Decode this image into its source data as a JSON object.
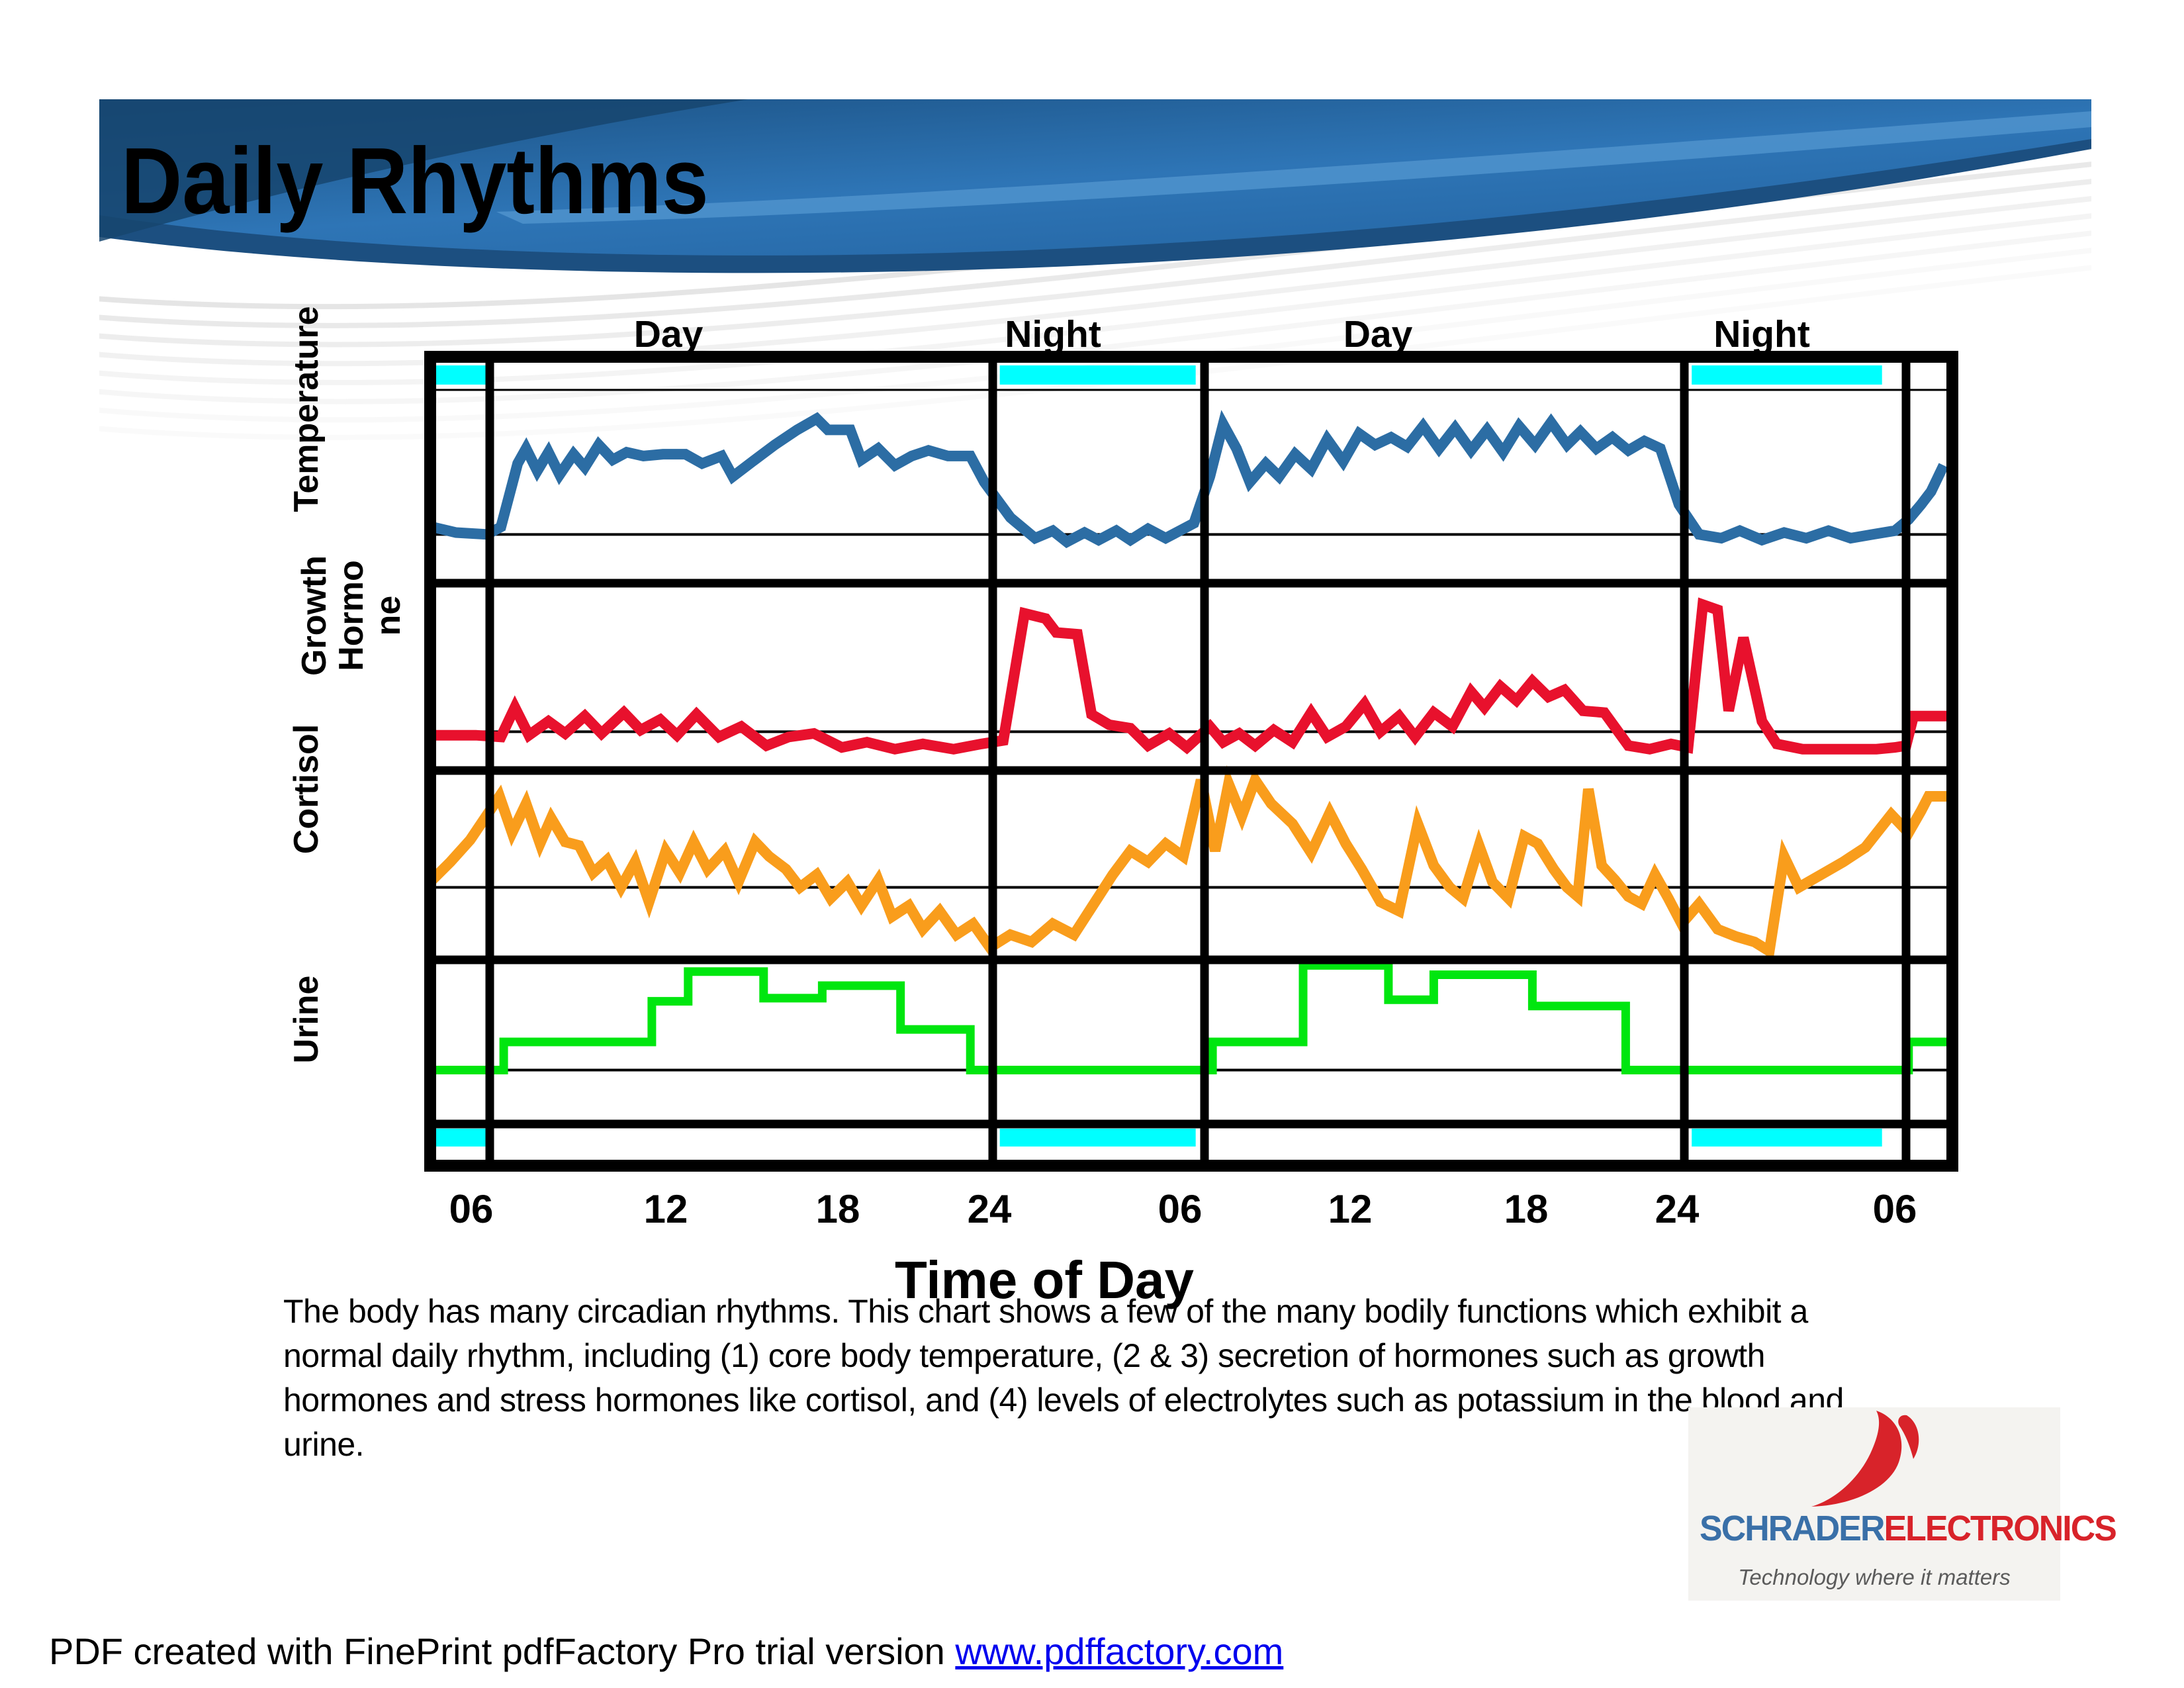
{
  "slide": {
    "title": "Daily Rhythms"
  },
  "colors": {
    "banner_dark_blue": "#16456e",
    "banner_mid_blue": "#2e75b6",
    "banner_light_blue": "#4f93cc",
    "night_bar_cyan": "#00ffff",
    "grid_black": "#000000",
    "link_blue": "#0000ee",
    "logo_blue": "#3a70a8",
    "logo_red": "#d8232a",
    "logo_bg": "#f4f3f0"
  },
  "chart_data": {
    "type": "line",
    "title": "",
    "xlabel": "Time of Day",
    "x_ticks": [
      "06",
      "12",
      "18",
      "24",
      "06",
      "12",
      "18",
      "24",
      "06"
    ],
    "x_tick_hours": [
      6,
      12,
      18,
      24,
      30,
      36,
      42,
      48,
      54
    ],
    "hour_range": [
      3.95,
      55.85
    ],
    "section_labels": [
      "Day",
      "Night",
      "Day",
      "Night"
    ],
    "grid_vline_hours": [
      6,
      24,
      30,
      48,
      54
    ],
    "night_bar_color": "#00ffff",
    "night_spans_hours": [
      [
        3.95,
        5.95
      ],
      [
        24.2,
        29.75
      ],
      [
        48.2,
        53.35
      ]
    ],
    "legend_position": "left-axis rotated labels, one stacked panel per variable",
    "grid": "thick vertical lines at 06 and 24, thick horizontal separators between panels, thin baseline inside each panel",
    "value_unit": "relative level, 0-100 = percent of panel height above panel bottom",
    "panels": [
      {
        "label": "Temperature",
        "label_lines": [
          "Temperature"
        ],
        "color": "#2c6da4",
        "baseline_value": 24,
        "series": [
          [
            3.95,
            28
          ],
          [
            4.8,
            25
          ],
          [
            5.9,
            24
          ],
          [
            6.4,
            28
          ],
          [
            7,
            62
          ],
          [
            7.3,
            70
          ],
          [
            7.7,
            58
          ],
          [
            8.1,
            68
          ],
          [
            8.5,
            56
          ],
          [
            9,
            67
          ],
          [
            9.4,
            60
          ],
          [
            9.9,
            72
          ],
          [
            10.4,
            64
          ],
          [
            10.9,
            68
          ],
          [
            11.5,
            66
          ],
          [
            12.2,
            67
          ],
          [
            13,
            67
          ],
          [
            13.6,
            62
          ],
          [
            14.3,
            66
          ],
          [
            14.7,
            55
          ],
          [
            15.4,
            63
          ],
          [
            16.2,
            72
          ],
          [
            17,
            80
          ],
          [
            17.7,
            86
          ],
          [
            18.1,
            80
          ],
          [
            18.9,
            80
          ],
          [
            19.3,
            64
          ],
          [
            19.9,
            70
          ],
          [
            20.5,
            61
          ],
          [
            21.1,
            66
          ],
          [
            21.7,
            69
          ],
          [
            22.4,
            66
          ],
          [
            23.2,
            66
          ],
          [
            23.7,
            52
          ],
          [
            24.5,
            33
          ],
          [
            25.2,
            22
          ],
          [
            25.7,
            26
          ],
          [
            26.1,
            20
          ],
          [
            26.6,
            25
          ],
          [
            27,
            21
          ],
          [
            27.5,
            26
          ],
          [
            27.9,
            21
          ],
          [
            28.4,
            27
          ],
          [
            28.9,
            22
          ],
          [
            29.3,
            26
          ],
          [
            29.7,
            30
          ],
          [
            30.2,
            55
          ],
          [
            30.7,
            83
          ],
          [
            31.2,
            70
          ],
          [
            31.7,
            52
          ],
          [
            32.3,
            62
          ],
          [
            32.8,
            55
          ],
          [
            33.4,
            67
          ],
          [
            34,
            59
          ],
          [
            34.6,
            75
          ],
          [
            35.2,
            63
          ],
          [
            35.8,
            78
          ],
          [
            36.4,
            72
          ],
          [
            37,
            76
          ],
          [
            37.6,
            71
          ],
          [
            38.2,
            82
          ],
          [
            38.8,
            70
          ],
          [
            39.4,
            81
          ],
          [
            40,
            69
          ],
          [
            40.6,
            80
          ],
          [
            41.2,
            68
          ],
          [
            41.8,
            82
          ],
          [
            42.4,
            72
          ],
          [
            43,
            84
          ],
          [
            43.6,
            72
          ],
          [
            44.1,
            79
          ],
          [
            44.7,
            70
          ],
          [
            45.3,
            76
          ],
          [
            45.9,
            69
          ],
          [
            46.5,
            74
          ],
          [
            47.1,
            70
          ],
          [
            47.8,
            40
          ],
          [
            48.4,
            24
          ],
          [
            49,
            22
          ],
          [
            49.5,
            26
          ],
          [
            50.1,
            21
          ],
          [
            50.7,
            25
          ],
          [
            51.3,
            22
          ],
          [
            51.9,
            26
          ],
          [
            52.5,
            22
          ],
          [
            53.1,
            24
          ],
          [
            53.7,
            26
          ],
          [
            54.1,
            32
          ],
          [
            54.6,
            40
          ],
          [
            55,
            47
          ],
          [
            55.5,
            61
          ]
        ]
      },
      {
        "label": "Growth Hormone",
        "label_lines": [
          "Growth",
          "Hormo",
          "ne"
        ],
        "color": "#e8112d",
        "baseline_value": 20,
        "series": [
          [
            3.95,
            18
          ],
          [
            5.5,
            18
          ],
          [
            6.4,
            17
          ],
          [
            6.9,
            34
          ],
          [
            7.4,
            18
          ],
          [
            8.1,
            26
          ],
          [
            8.7,
            19
          ],
          [
            9.4,
            29
          ],
          [
            10,
            19
          ],
          [
            10.8,
            31
          ],
          [
            11.4,
            21
          ],
          [
            12.1,
            27
          ],
          [
            12.7,
            18
          ],
          [
            13.4,
            30
          ],
          [
            14.2,
            17
          ],
          [
            15,
            23
          ],
          [
            15.9,
            12
          ],
          [
            16.7,
            17
          ],
          [
            17.6,
            19
          ],
          [
            18.6,
            11
          ],
          [
            19.5,
            14
          ],
          [
            20.5,
            10
          ],
          [
            21.5,
            13
          ],
          [
            22.6,
            10
          ],
          [
            23.6,
            13
          ],
          [
            24.3,
            15
          ],
          [
            24.9,
            88
          ],
          [
            25.5,
            85
          ],
          [
            25.8,
            77
          ],
          [
            26.4,
            76
          ],
          [
            26.8,
            30
          ],
          [
            27.3,
            24
          ],
          [
            27.9,
            22
          ],
          [
            28.4,
            12
          ],
          [
            29,
            19
          ],
          [
            29.5,
            11
          ],
          [
            30.2,
            23
          ],
          [
            30.7,
            14
          ],
          [
            31.3,
            19
          ],
          [
            31.9,
            12
          ],
          [
            32.6,
            21
          ],
          [
            33.3,
            14
          ],
          [
            34,
            31
          ],
          [
            34.6,
            17
          ],
          [
            35.3,
            23
          ],
          [
            36,
            36
          ],
          [
            36.6,
            20
          ],
          [
            37.3,
            29
          ],
          [
            37.9,
            17
          ],
          [
            38.6,
            31
          ],
          [
            39.3,
            23
          ],
          [
            40,
            43
          ],
          [
            40.5,
            34
          ],
          [
            41.1,
            46
          ],
          [
            41.7,
            38
          ],
          [
            42.3,
            49
          ],
          [
            42.9,
            40
          ],
          [
            43.5,
            44
          ],
          [
            44.2,
            32
          ],
          [
            45,
            31
          ],
          [
            45.9,
            12
          ],
          [
            46.7,
            10
          ],
          [
            47.5,
            13
          ],
          [
            48.1,
            11
          ],
          [
            48.5,
            93
          ],
          [
            48.9,
            90
          ],
          [
            49.2,
            32
          ],
          [
            49.6,
            74
          ],
          [
            50.1,
            26
          ],
          [
            50.5,
            13
          ],
          [
            51.2,
            10
          ],
          [
            52.2,
            10
          ],
          [
            53.2,
            10
          ],
          [
            53.7,
            11
          ],
          [
            54,
            12
          ],
          [
            54.3,
            29
          ],
          [
            55.7,
            29
          ]
        ]
      },
      {
        "label": "Cortisol",
        "label_lines": [
          "Cortisol"
        ],
        "color": "#f99d1c",
        "baseline_value": 38,
        "series": [
          [
            3.95,
            42
          ],
          [
            4.6,
            52
          ],
          [
            5.3,
            64
          ],
          [
            6.35,
            88
          ],
          [
            6.8,
            68
          ],
          [
            7.3,
            84
          ],
          [
            7.8,
            62
          ],
          [
            8.2,
            76
          ],
          [
            8.7,
            63
          ],
          [
            9.2,
            61
          ],
          [
            9.7,
            46
          ],
          [
            10.2,
            53
          ],
          [
            10.7,
            38
          ],
          [
            11.2,
            52
          ],
          [
            11.7,
            30
          ],
          [
            12.3,
            58
          ],
          [
            12.8,
            46
          ],
          [
            13.3,
            63
          ],
          [
            13.8,
            48
          ],
          [
            14.4,
            58
          ],
          [
            14.9,
            41
          ],
          [
            15.5,
            63
          ],
          [
            16,
            55
          ],
          [
            16.6,
            48
          ],
          [
            17.1,
            38
          ],
          [
            17.7,
            45
          ],
          [
            18.2,
            32
          ],
          [
            18.8,
            41
          ],
          [
            19.3,
            28
          ],
          [
            19.9,
            42
          ],
          [
            20.4,
            22
          ],
          [
            21,
            28
          ],
          [
            21.5,
            15
          ],
          [
            22.1,
            25
          ],
          [
            22.7,
            12
          ],
          [
            23.3,
            18
          ],
          [
            23.9,
            5
          ],
          [
            24.5,
            12
          ],
          [
            25.1,
            8
          ],
          [
            25.7,
            18
          ],
          [
            26.3,
            12
          ],
          [
            26.9,
            30
          ],
          [
            27.4,
            45
          ],
          [
            27.9,
            58
          ],
          [
            28.4,
            52
          ],
          [
            28.9,
            62
          ],
          [
            29.4,
            55
          ],
          [
            29.9,
            97
          ],
          [
            30.4,
            58
          ],
          [
            30.9,
            95
          ],
          [
            31.4,
            77
          ],
          [
            31.9,
            97
          ],
          [
            32.5,
            84
          ],
          [
            33.3,
            73
          ],
          [
            34,
            57
          ],
          [
            34.7,
            79
          ],
          [
            35.3,
            62
          ],
          [
            35.9,
            48
          ],
          [
            36.6,
            30
          ],
          [
            37.3,
            25
          ],
          [
            38,
            73
          ],
          [
            38.6,
            50
          ],
          [
            39.2,
            38
          ],
          [
            39.7,
            32
          ],
          [
            40.3,
            61
          ],
          [
            40.8,
            41
          ],
          [
            41.4,
            32
          ],
          [
            42,
            66
          ],
          [
            42.5,
            62
          ],
          [
            43.1,
            48
          ],
          [
            43.6,
            38
          ],
          [
            44,
            33
          ],
          [
            44.4,
            92
          ],
          [
            44.9,
            50
          ],
          [
            45.4,
            42
          ],
          [
            45.9,
            33
          ],
          [
            46.4,
            29
          ],
          [
            46.9,
            45
          ],
          [
            47.4,
            32
          ],
          [
            47.9,
            18
          ],
          [
            48.4,
            29
          ],
          [
            48.9,
            15
          ],
          [
            49.4,
            11
          ],
          [
            49.9,
            8
          ],
          [
            50.3,
            3
          ],
          [
            50.7,
            55
          ],
          [
            51.1,
            38
          ],
          [
            51.7,
            45
          ],
          [
            52.3,
            52
          ],
          [
            52.9,
            60
          ],
          [
            53.6,
            78
          ],
          [
            54.1,
            68
          ],
          [
            54.6,
            80
          ],
          [
            54.9,
            88
          ],
          [
            55.8,
            88
          ]
        ]
      },
      {
        "label": "Urine",
        "label_lines": [
          "Urine"
        ],
        "color": "#00e60f",
        "baseline_value": 32,
        "step": true,
        "series": [
          [
            3.8,
            32
          ],
          [
            6.5,
            32
          ],
          [
            6.5,
            50
          ],
          [
            11.8,
            50
          ],
          [
            11.8,
            76
          ],
          [
            13.1,
            76
          ],
          [
            13.1,
            95
          ],
          [
            15.8,
            95
          ],
          [
            15.8,
            78
          ],
          [
            17.9,
            78
          ],
          [
            17.9,
            86
          ],
          [
            20.7,
            86
          ],
          [
            20.7,
            58
          ],
          [
            23.2,
            58
          ],
          [
            23.2,
            32
          ],
          [
            30.3,
            32
          ],
          [
            30.3,
            50
          ],
          [
            33.7,
            50
          ],
          [
            33.7,
            99
          ],
          [
            36.9,
            99
          ],
          [
            36.9,
            77
          ],
          [
            38.6,
            77
          ],
          [
            38.6,
            93
          ],
          [
            42.3,
            93
          ],
          [
            42.3,
            73
          ],
          [
            45.8,
            73
          ],
          [
            45.8,
            32
          ],
          [
            54.1,
            32
          ],
          [
            54.1,
            50
          ],
          [
            55.85,
            50
          ]
        ]
      }
    ]
  },
  "caption": {
    "lines": [
      "The body has many circadian rhythms.  This chart shows a few of the many bodily functions which exhibit a",
      "normal daily rhythm, including (1) core body temperature, (2 & 3) secretion of hormones such as growth",
      "hormones and stress hormones like cortisol, and (4) levels of electrolytes such as potassium in the blood and",
      "urine."
    ]
  },
  "logo": {
    "brand_blue": "SCHRADER",
    "brand_red": "ELECTRONICS",
    "tagline": "Technology where it matters"
  },
  "footer": {
    "text": "PDF created with FinePrint pdfFactory Pro trial version ",
    "link": "www.pdffactory.com"
  }
}
